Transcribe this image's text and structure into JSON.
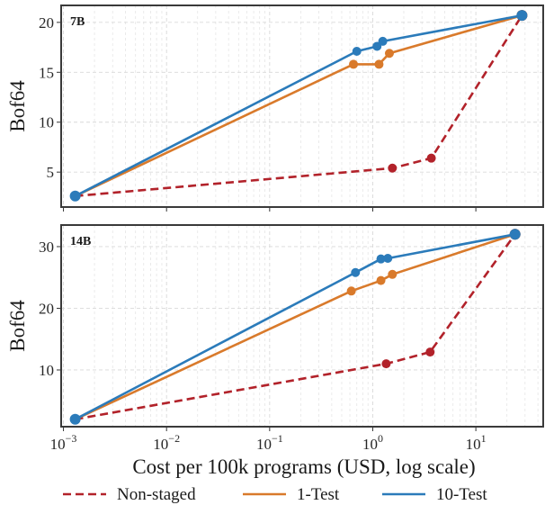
{
  "chart_data": {
    "type": "line",
    "xlabel": "Cost per 100k programs (USD, log scale)",
    "x_scale": "log",
    "xlim": [
      0.00095,
      45
    ],
    "x_ticks": [
      0.001,
      0.01,
      0.1,
      1,
      10
    ],
    "x_tick_labels": [
      {
        "base": "10",
        "exp": "−3"
      },
      {
        "base": "10",
        "exp": "−2"
      },
      {
        "base": "10",
        "exp": "−1"
      },
      {
        "base": "10",
        "exp": "0"
      },
      {
        "base": "10",
        "exp": "1"
      }
    ],
    "grid": true,
    "legend": {
      "placement": "bottom",
      "entries": [
        {
          "label": "Non-staged",
          "color": "#b2222a",
          "dash": true
        },
        {
          "label": "1-Test",
          "color": "#d97a2b",
          "dash": false
        },
        {
          "label": "10-Test",
          "color": "#2b7bba",
          "dash": false
        }
      ]
    },
    "panels": [
      {
        "tag": "7B",
        "ylabel": "Bof64",
        "ylim": [
          1.5,
          21.7
        ],
        "y_ticks": [
          5,
          10,
          15,
          20
        ],
        "series": [
          {
            "name": "Non-staged",
            "color": "#b2222a",
            "dash": true,
            "x": [
              0.0013,
              1.55,
              3.7,
              28
            ],
            "y": [
              2.6,
              5.4,
              6.4,
              20.7
            ]
          },
          {
            "name": "1-Test",
            "color": "#d97a2b",
            "dash": false,
            "x": [
              0.0013,
              0.65,
              1.15,
              1.45,
              28
            ],
            "y": [
              2.6,
              15.8,
              15.8,
              16.9,
              20.7
            ]
          },
          {
            "name": "10-Test",
            "color": "#2b7bba",
            "dash": false,
            "x": [
              0.0013,
              0.7,
              1.1,
              1.25,
              28
            ],
            "y": [
              2.6,
              17.1,
              17.6,
              18.1,
              20.7
            ]
          }
        ]
      },
      {
        "tag": "14B",
        "ylabel": "Bof64",
        "ylim": [
          0.8,
          33.5
        ],
        "y_ticks": [
          10,
          20,
          30
        ],
        "series": [
          {
            "name": "Non-staged",
            "color": "#b2222a",
            "dash": true,
            "x": [
              0.0013,
              1.35,
              3.6,
              24
            ],
            "y": [
              2.0,
              11.0,
              12.9,
              32.0
            ]
          },
          {
            "name": "1-Test",
            "color": "#d97a2b",
            "dash": false,
            "x": [
              0.0013,
              0.62,
              1.2,
              1.55,
              24
            ],
            "y": [
              2.0,
              22.8,
              24.5,
              25.5,
              32.0
            ]
          },
          {
            "name": "10-Test",
            "color": "#2b7bba",
            "dash": false,
            "x": [
              0.0013,
              0.68,
              1.2,
              1.4,
              24
            ],
            "y": [
              2.0,
              25.8,
              28.0,
              28.1,
              32.0
            ]
          }
        ]
      }
    ]
  }
}
